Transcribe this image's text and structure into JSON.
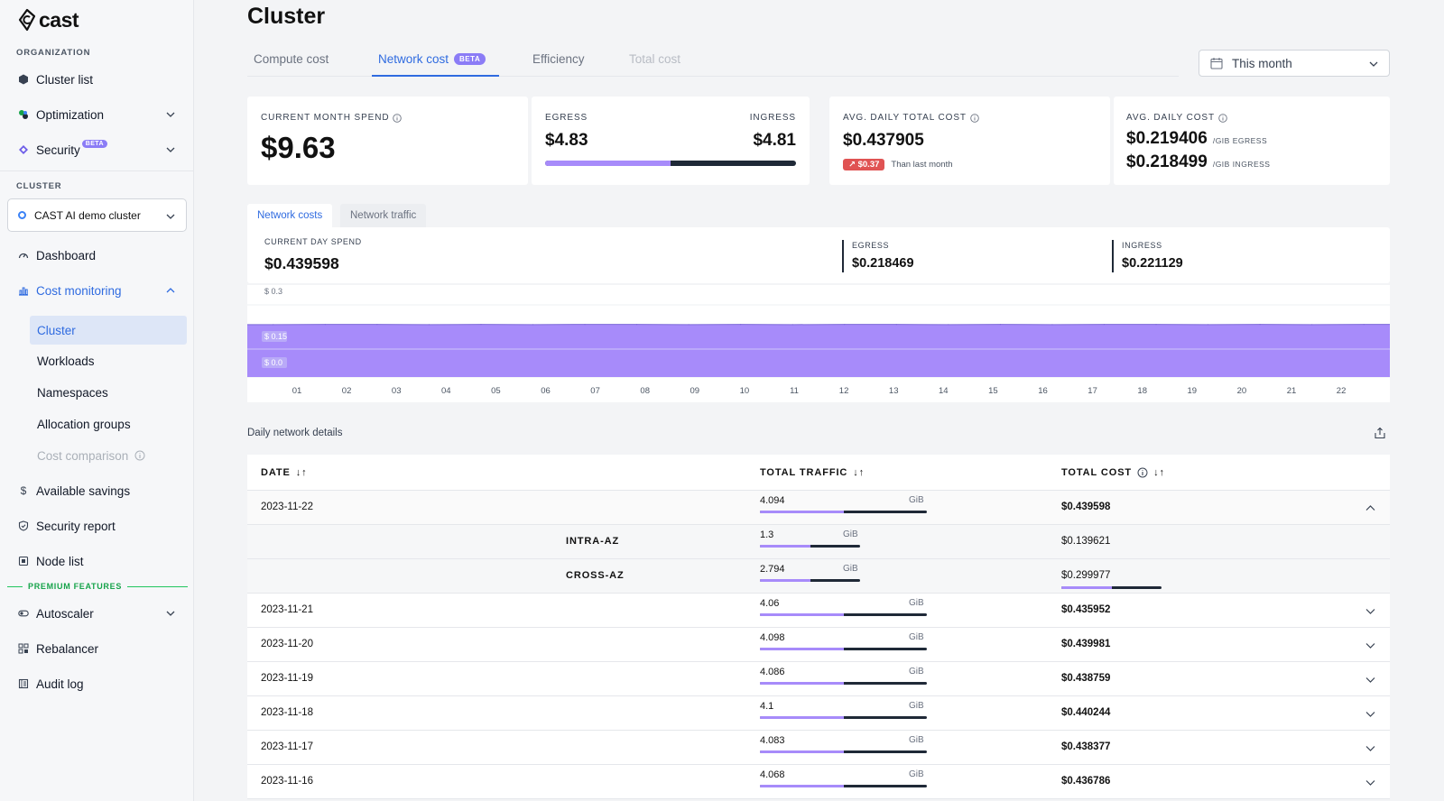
{
  "brand": {
    "name": "cast"
  },
  "sidebar": {
    "organization_label": "ORGANIZATION",
    "cluster_label": "CLUSTER",
    "org_items": [
      {
        "label": "Cluster list",
        "icon": "hexagon-icon"
      },
      {
        "label": "Optimization",
        "icon": "optimization-icon"
      },
      {
        "label": "Security",
        "icon": "security-icon",
        "badge": "BETA"
      }
    ],
    "cluster_select": {
      "value": "CAST AI demo cluster"
    },
    "cluster_items": [
      {
        "label": "Dashboard",
        "icon": "gauge-icon"
      },
      {
        "label": "Cost monitoring",
        "icon": "bar-chart-icon"
      }
    ],
    "cost_monitoring_sub": [
      {
        "label": "Cluster",
        "active": true
      },
      {
        "label": "Workloads"
      },
      {
        "label": "Namespaces"
      },
      {
        "label": "Allocation groups"
      },
      {
        "label": "Cost comparison",
        "disabled": true
      }
    ],
    "more_items": [
      {
        "label": "Available savings",
        "icon": "dollar-icon"
      },
      {
        "label": "Security report",
        "icon": "shield-icon"
      },
      {
        "label": "Node list",
        "icon": "node-icon"
      }
    ],
    "premium_label": "PREMIUM FEATURES",
    "premium_items": [
      {
        "label": "Autoscaler",
        "icon": "toggle-icon"
      },
      {
        "label": "Rebalancer",
        "icon": "grid-icon"
      },
      {
        "label": "Audit log",
        "icon": "log-icon"
      }
    ]
  },
  "header": {
    "title": "Cluster"
  },
  "tabs": [
    {
      "label": "Compute cost"
    },
    {
      "label": "Network cost",
      "badge": "BETA",
      "active": true
    },
    {
      "label": "Efficiency"
    },
    {
      "label": "Total cost",
      "disabled": true
    }
  ],
  "date_filter": {
    "value": "This month"
  },
  "summary": {
    "current_month": {
      "label": "CURRENT MONTH SPEND",
      "value": "$9.63"
    },
    "egress_ingress": {
      "egress_label": "EGRESS",
      "egress_value": "$4.83",
      "ingress_label": "INGRESS",
      "ingress_value": "$4.81",
      "egress_share": 0.501
    },
    "avg_daily_total": {
      "label": "AVG. DAILY TOTAL COST",
      "value": "$0.437905",
      "delta": "$0.37",
      "delta_note": "Than last month"
    },
    "avg_daily_cost": {
      "label": "AVG. DAILY COST",
      "egress_value": "$0.219406",
      "egress_unit": "/GIB EGRESS",
      "ingress_value": "$0.218499",
      "ingress_unit": "/GIB INGRESS"
    }
  },
  "network_tabs": [
    {
      "label": "Network costs",
      "active": true
    },
    {
      "label": "Network traffic"
    }
  ],
  "current_day": {
    "label": "CURRENT DAY SPEND",
    "value": "$0.439598",
    "egress_label": "EGRESS",
    "egress_value": "$0.218469",
    "ingress_label": "INGRESS",
    "ingress_value": "$0.221129"
  },
  "chart_data": {
    "type": "area",
    "title": "",
    "xlabel": "",
    "ylabel": "",
    "x": [
      "01",
      "02",
      "03",
      "04",
      "05",
      "06",
      "07",
      "08",
      "09",
      "10",
      "11",
      "12",
      "13",
      "14",
      "15",
      "16",
      "17",
      "18",
      "19",
      "20",
      "21",
      "22"
    ],
    "y_ticks": [
      "$ 0.3",
      "$ 0.15",
      "$ 0.0"
    ],
    "ylim": [
      0,
      0.3
    ],
    "series": [
      {
        "values": [
          0.218,
          0.219,
          0.219,
          0.218,
          0.219,
          0.218,
          0.219,
          0.219,
          0.218,
          0.219,
          0.218,
          0.219,
          0.219,
          0.218,
          0.219,
          0.218,
          0.219,
          0.219,
          0.218,
          0.219,
          0.218,
          0.219
        ],
        "color": "#a78bfa"
      }
    ],
    "band_color": "#c4b5fd",
    "grid": true
  },
  "details": {
    "title": "Daily network details",
    "columns": [
      {
        "label": "DATE"
      },
      {
        "label": "TOTAL TRAFFIC"
      },
      {
        "label": "TOTAL COST"
      }
    ],
    "rows": [
      {
        "date": "2023-11-22",
        "traffic": "4.094",
        "unit": "GiB",
        "share": 0.5,
        "cost": "$0.439598",
        "expanded": true
      },
      {
        "date": "2023-11-21",
        "traffic": "4.06",
        "unit": "GiB",
        "share": 0.5,
        "cost": "$0.435952"
      },
      {
        "date": "2023-11-20",
        "traffic": "4.098",
        "unit": "GiB",
        "share": 0.5,
        "cost": "$0.439981"
      },
      {
        "date": "2023-11-19",
        "traffic": "4.086",
        "unit": "GiB",
        "share": 0.5,
        "cost": "$0.438759"
      },
      {
        "date": "2023-11-18",
        "traffic": "4.1",
        "unit": "GiB",
        "share": 0.5,
        "cost": "$0.440244"
      },
      {
        "date": "2023-11-17",
        "traffic": "4.083",
        "unit": "GiB",
        "share": 0.5,
        "cost": "$0.438377"
      },
      {
        "date": "2023-11-16",
        "traffic": "4.068",
        "unit": "GiB",
        "share": 0.5,
        "cost": "$0.436786"
      }
    ],
    "sub_rows": [
      {
        "name": "INTRA-AZ",
        "traffic": "1.3",
        "unit": "GiB",
        "share": 0.5,
        "cost": "$0.139621"
      },
      {
        "name": "CROSS-AZ",
        "traffic": "2.794",
        "unit": "GiB",
        "share": 0.5,
        "cost": "$0.299977",
        "cost_share": 0.5
      }
    ]
  },
  "colors": {
    "accent": "#2f6be0",
    "purple": "#a78bfa",
    "dark": "#1f2937",
    "red": "#e05353",
    "green": "#22c55e"
  }
}
